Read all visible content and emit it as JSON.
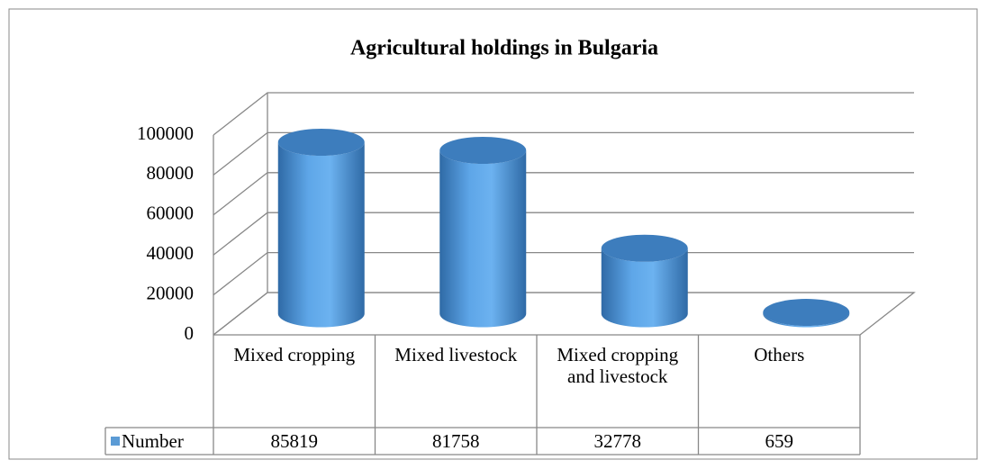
{
  "chart_data": {
    "type": "bar",
    "title": "Agricultural holdings in Bulgaria",
    "categories": [
      "Mixed cropping",
      "Mixed livestock",
      "Mixed cropping and livestock",
      "Others"
    ],
    "series": [
      {
        "name": "Number",
        "color": "#5b9bd5",
        "values": [
          85819,
          81758,
          32778,
          659
        ]
      }
    ],
    "ylim": [
      0,
      100000
    ],
    "yticks": [
      0,
      20000,
      40000,
      60000,
      80000,
      100000
    ],
    "grid": true
  }
}
